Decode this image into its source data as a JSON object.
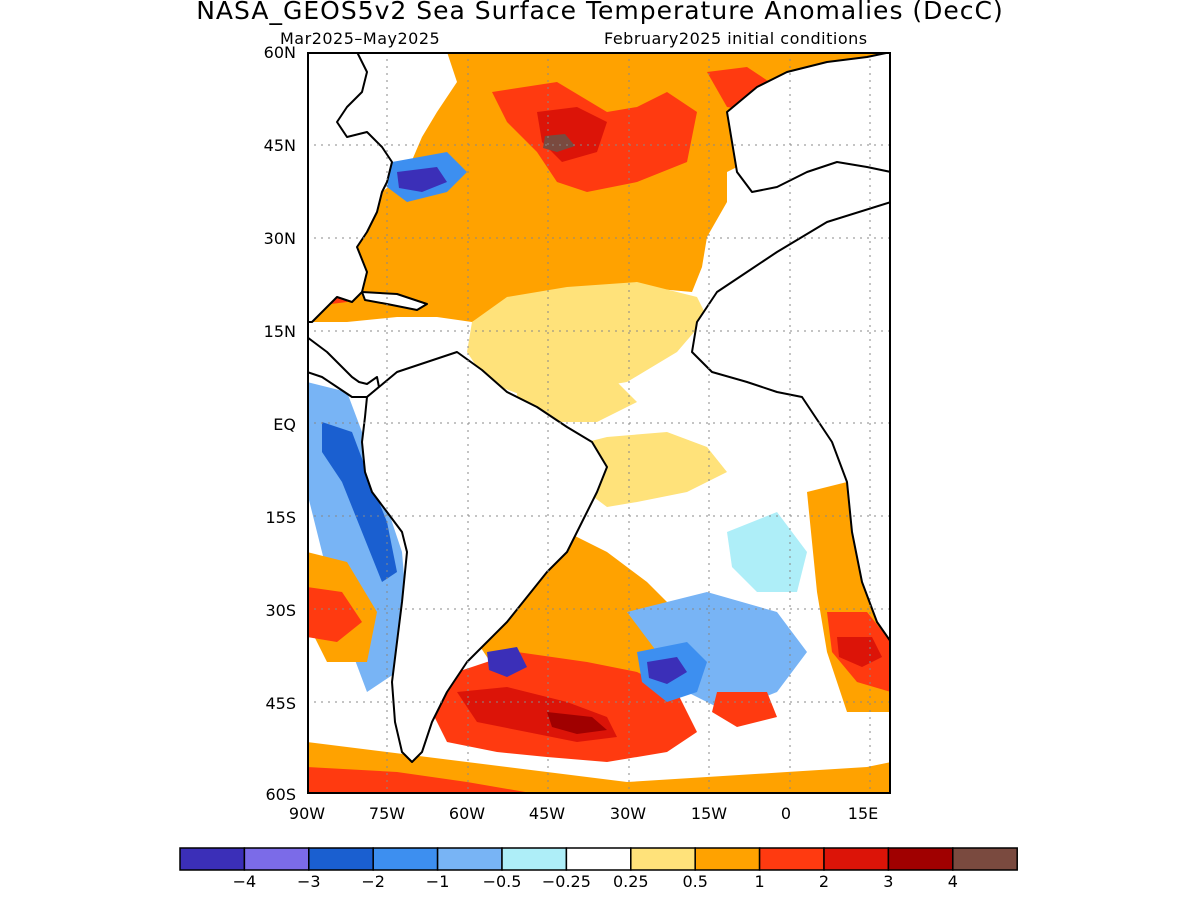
{
  "title": "NASA_GEOS5v2 Sea Surface Temperature Anomalies (DecC)",
  "subtitle_left": "Mar2025–May2025",
  "subtitle_right": "February2025 initial conditions",
  "y_ticks": [
    "60N",
    "45N",
    "30N",
    "15N",
    "EQ",
    "15S",
    "30S",
    "45S",
    "60S"
  ],
  "x_ticks": [
    "90W",
    "75W",
    "60W",
    "45W",
    "30W",
    "15W",
    "0",
    "15E"
  ],
  "colorbar": {
    "colors": [
      "#3b2fb8",
      "#7b6be8",
      "#1a5fd0",
      "#3d8ff0",
      "#78b4f5",
      "#aeeef8",
      "#ffffff",
      "#ffe27a",
      "#ffa200",
      "#ff3a10",
      "#dc1408",
      "#a00000",
      "#7a4a3f"
    ],
    "labels": [
      "−4",
      "−3",
      "−2",
      "−1",
      "−0.5",
      "−0.25",
      "0.25",
      "0.5",
      "1",
      "2",
      "3",
      "4"
    ]
  },
  "map": {
    "lon_range": [
      -90,
      18
    ],
    "lat_range": [
      -60,
      60
    ],
    "grid": true
  }
}
